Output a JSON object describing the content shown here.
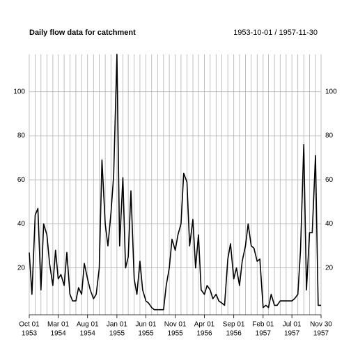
{
  "chart_data": {
    "type": "line",
    "title": "Daily flow data for  catchment",
    "subtitle": "1953-10-01 / 1957-11-30",
    "color": "#000000",
    "grid": true,
    "xlim": [
      "1953-10-01",
      "1957-11-30"
    ],
    "ylim": [
      -1.3,
      117
    ],
    "yticks": [
      20,
      40,
      60,
      80,
      100
    ],
    "xticks": [
      {
        "value": "1953-10-01",
        "label": [
          "Oct 01",
          "1953"
        ]
      },
      {
        "value": "1954-03-01",
        "label": [
          "Mar 01",
          "1954"
        ]
      },
      {
        "value": "1954-08-01",
        "label": [
          "Aug 01",
          "1954"
        ]
      },
      {
        "value": "1955-01-01",
        "label": [
          "Jan 01",
          "1955"
        ]
      },
      {
        "value": "1955-06-01",
        "label": [
          "Jun 01",
          "1955"
        ]
      },
      {
        "value": "1955-11-01",
        "label": [
          "Nov 01",
          "1955"
        ]
      },
      {
        "value": "1956-04-01",
        "label": [
          "Apr 01",
          "1956"
        ]
      },
      {
        "value": "1956-09-01",
        "label": [
          "Sep 01",
          "1956"
        ]
      },
      {
        "value": "1957-02-01",
        "label": [
          "Feb 01",
          "1957"
        ]
      },
      {
        "value": "1957-07-01",
        "label": [
          "Jul 01",
          "1957"
        ]
      },
      {
        "value": "1957-11-30",
        "label": [
          "Nov 30",
          "1957"
        ]
      }
    ],
    "xgrid": [
      "1953-10-01",
      "1953-11-01",
      "1953-12-01",
      "1954-01-01",
      "1954-02-01",
      "1954-03-01",
      "1954-04-01",
      "1954-05-01",
      "1954-06-01",
      "1954-07-01",
      "1954-08-01",
      "1954-09-01",
      "1954-10-01",
      "1954-11-01",
      "1954-12-01",
      "1955-01-01",
      "1955-02-01",
      "1955-03-01",
      "1955-04-01",
      "1955-05-01",
      "1955-06-01",
      "1955-07-01",
      "1955-08-01",
      "1955-09-01",
      "1955-10-01",
      "1955-11-01",
      "1955-12-01",
      "1956-01-01",
      "1956-02-01",
      "1956-03-01",
      "1956-04-01",
      "1956-05-01",
      "1956-06-01",
      "1956-07-01",
      "1956-08-01",
      "1956-09-01",
      "1956-10-01",
      "1956-11-01",
      "1956-12-01",
      "1957-01-01",
      "1957-02-01",
      "1957-03-01",
      "1957-04-01",
      "1957-05-01",
      "1957-06-01",
      "1957-07-01",
      "1957-08-01",
      "1957-09-01",
      "1957-10-01",
      "1957-11-01",
      "1957-11-30"
    ],
    "x": [
      "1953-10-01",
      "1953-10-15",
      "1953-11-01",
      "1953-11-15",
      "1953-12-01",
      "1953-12-15",
      "1954-01-01",
      "1954-01-15",
      "1954-02-01",
      "1954-02-15",
      "1954-03-01",
      "1954-03-15",
      "1954-04-01",
      "1954-04-15",
      "1954-05-01",
      "1954-05-15",
      "1954-06-01",
      "1954-06-15",
      "1954-07-01",
      "1954-07-15",
      "1954-08-01",
      "1954-08-15",
      "1954-09-01",
      "1954-09-15",
      "1954-10-01",
      "1954-10-15",
      "1954-11-01",
      "1954-11-15",
      "1954-12-01",
      "1954-12-15",
      "1955-01-01",
      "1955-01-15",
      "1955-02-01",
      "1955-02-15",
      "1955-03-01",
      "1955-03-15",
      "1955-04-01",
      "1955-04-15",
      "1955-05-01",
      "1955-05-15",
      "1955-06-01",
      "1955-06-15",
      "1955-07-01",
      "1955-07-15",
      "1955-08-01",
      "1955-08-15",
      "1955-09-01",
      "1955-09-15",
      "1955-10-01",
      "1955-10-15",
      "1955-11-01",
      "1955-11-15",
      "1955-12-01",
      "1955-12-15",
      "1956-01-01",
      "1956-01-15",
      "1956-02-01",
      "1956-02-15",
      "1956-03-01",
      "1956-03-15",
      "1956-04-01",
      "1956-04-15",
      "1956-05-01",
      "1956-05-15",
      "1956-06-01",
      "1956-06-15",
      "1956-07-01",
      "1956-07-15",
      "1956-08-01",
      "1956-08-15",
      "1956-09-01",
      "1956-09-15",
      "1956-10-01",
      "1956-10-15",
      "1956-11-01",
      "1956-11-15",
      "1956-12-01",
      "1956-12-15",
      "1957-01-01",
      "1957-01-15",
      "1957-02-01",
      "1957-02-15",
      "1957-03-01",
      "1957-03-15",
      "1957-04-01",
      "1957-04-15",
      "1957-05-01",
      "1957-05-15",
      "1957-06-01",
      "1957-06-15",
      "1957-07-01",
      "1957-07-15",
      "1957-08-01",
      "1957-08-15",
      "1957-09-01",
      "1957-09-15",
      "1957-10-01",
      "1957-10-15",
      "1957-11-01",
      "1957-11-15",
      "1957-11-30"
    ],
    "values": [
      27,
      8,
      44,
      47,
      10,
      40,
      35,
      22,
      12,
      28,
      15,
      17,
      12,
      27,
      8,
      5,
      5,
      11,
      8,
      22,
      15,
      10,
      6,
      8,
      20,
      69,
      40,
      30,
      45,
      62,
      117,
      30,
      61,
      20,
      25,
      55,
      15,
      8,
      23,
      10,
      5,
      4,
      2,
      1,
      1,
      1,
      1,
      12,
      20,
      33,
      28,
      35,
      40,
      63,
      59,
      30,
      42,
      20,
      35,
      10,
      8,
      12,
      10,
      6,
      8,
      5,
      4,
      3,
      24,
      31,
      15,
      20,
      12,
      23,
      30,
      40,
      30,
      29,
      23,
      24,
      2,
      3,
      2,
      8,
      3,
      3,
      5,
      5,
      5,
      5,
      5,
      6,
      8,
      28,
      76,
      10,
      36,
      36,
      71,
      3,
      3
    ]
  }
}
